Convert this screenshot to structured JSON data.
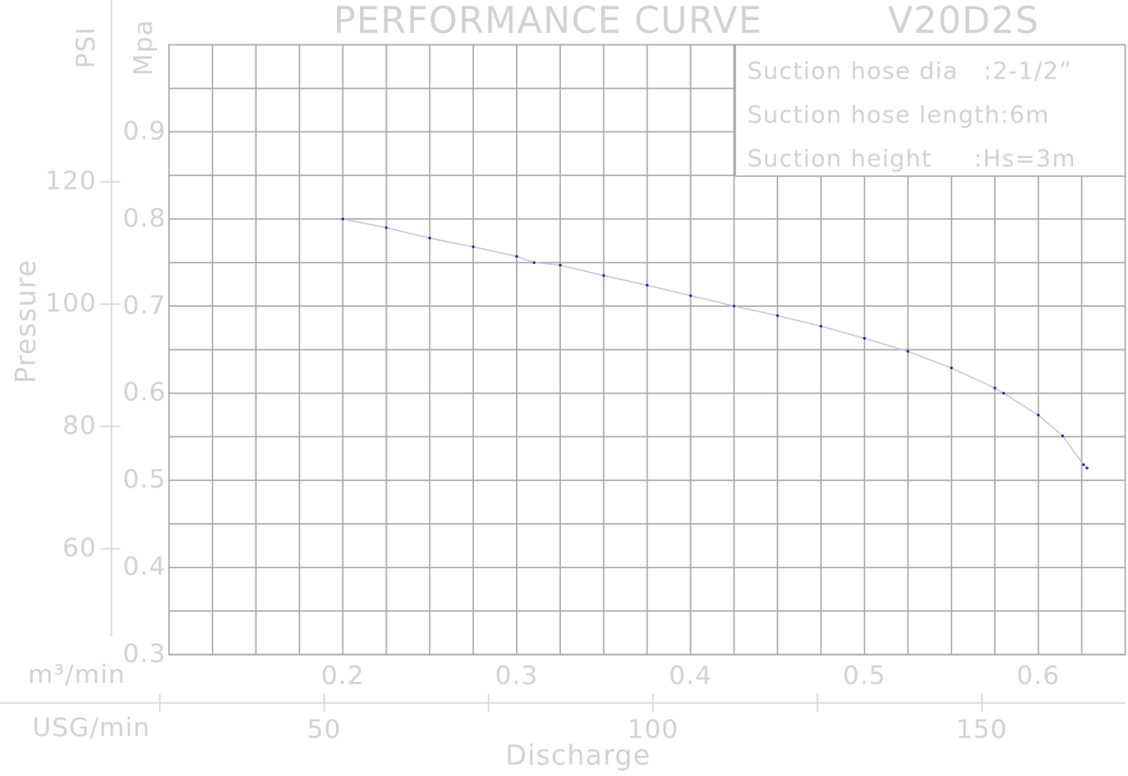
{
  "chart_data": {
    "type": "line",
    "title": "PERFORMANCE CURVE",
    "model": "V20D2S",
    "notes": [
      "Suction hose dia   :2-1/2”",
      "Suction hose length:6m",
      "Suction height     :Hs=3m"
    ],
    "y_label": "Pressure",
    "y_unit": "Mpa",
    "y2_unit": "PSI",
    "x_label": "Discharge",
    "x_unit": "m³/min",
    "x2_unit": "USG/min",
    "color": "#c8c8d8",
    "marker_color": "#2a2a8a",
    "grid": true,
    "x": [
      0.2,
      0.225,
      0.25,
      0.275,
      0.3,
      0.31,
      0.325,
      0.35,
      0.375,
      0.4,
      0.425,
      0.45,
      0.475,
      0.5,
      0.525,
      0.55,
      0.575,
      0.58,
      0.6,
      0.614,
      0.626,
      0.628
    ],
    "values": [
      0.8,
      0.79,
      0.778,
      0.768,
      0.757,
      0.75,
      0.747,
      0.735,
      0.724,
      0.712,
      0.7,
      0.689,
      0.677,
      0.663,
      0.648,
      0.629,
      0.606,
      0.6,
      0.575,
      0.551,
      0.518,
      0.514
    ],
    "xlim": [
      0.1,
      0.65
    ],
    "xticks": [
      0.2,
      0.3,
      0.4,
      0.5,
      0.6
    ],
    "xminor": [
      0.125,
      0.15,
      0.175,
      0.225,
      0.25,
      0.275,
      0.325,
      0.35,
      0.375,
      0.425,
      0.45,
      0.475,
      0.525,
      0.55,
      0.575,
      0.625
    ],
    "ylim": [
      0.3,
      1.0
    ],
    "yticks": [
      0.3,
      0.4,
      0.5,
      0.6,
      0.7,
      0.8,
      0.9
    ],
    "yminor": [
      0.35,
      0.45,
      0.55,
      0.65,
      0.75,
      0.85,
      0.95
    ],
    "x2lim": [
      26.4,
      171.8
    ],
    "x2ticks": [
      50,
      100,
      150
    ],
    "x2minor": [
      25,
      75,
      125
    ],
    "y2lim": [
      42.7,
      142.4
    ],
    "y2ticks": [
      60,
      80,
      100,
      120
    ]
  }
}
